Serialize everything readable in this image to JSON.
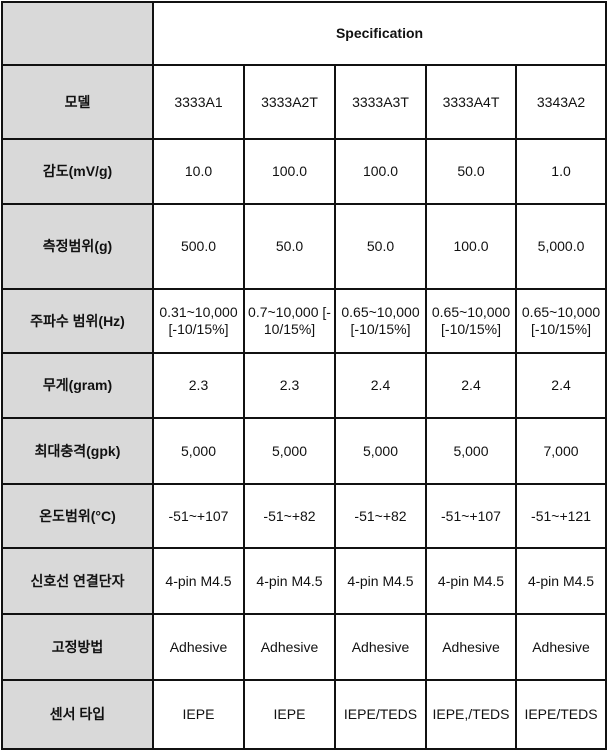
{
  "header": {
    "title": "Specification"
  },
  "rows": [
    {
      "label": "모델",
      "values": [
        "3333A1",
        "3333A2T",
        "3333A3T",
        "3333A4T",
        "3343A2"
      ]
    },
    {
      "label": "감도(mV/g)",
      "values": [
        "10.0",
        "100.0",
        "100.0",
        "50.0",
        "1.0"
      ]
    },
    {
      "label": "측정범위(g)",
      "values": [
        "500.0",
        "50.0",
        "50.0",
        "100.0",
        "5,000.0"
      ]
    },
    {
      "label": "주파수 범위(Hz)",
      "values": [
        "0.31~10,000\n[-10/15%]",
        "0.7~10,000 [-\n10/15%]",
        "0.65~10,000\n[-10/15%]",
        "0.65~10,000\n[-10/15%]",
        "0.65~10,000\n[-10/15%]"
      ]
    },
    {
      "label": "무게(gram)",
      "values": [
        "2.3",
        "2.3",
        "2.4",
        "2.4",
        "2.4"
      ]
    },
    {
      "label": "최대충격(gpk)",
      "values": [
        "5,000",
        "5,000",
        "5,000",
        "5,000",
        "7,000"
      ]
    },
    {
      "label": "온도범위(°C)",
      "values": [
        "-51~+107",
        "-51~+82",
        "-51~+82",
        "-51~+107",
        "-51~+121"
      ]
    },
    {
      "label": "신호선 연결단자",
      "values": [
        "4-pin M4.5",
        "4-pin M4.5",
        "4-pin M4.5",
        "4-pin M4.5",
        "4-pin M4.5"
      ]
    },
    {
      "label": "고정방법",
      "values": [
        "Adhesive",
        "Adhesive",
        "Adhesive",
        "Adhesive",
        "Adhesive"
      ]
    },
    {
      "label": "센서 타입",
      "values": [
        "IEPE",
        "IEPE",
        "IEPE/TEDS",
        "IEPE,/TEDS",
        "IEPE/TEDS"
      ]
    }
  ],
  "colors": {
    "label_bg": "#d9d9d9",
    "border": "#111111"
  }
}
